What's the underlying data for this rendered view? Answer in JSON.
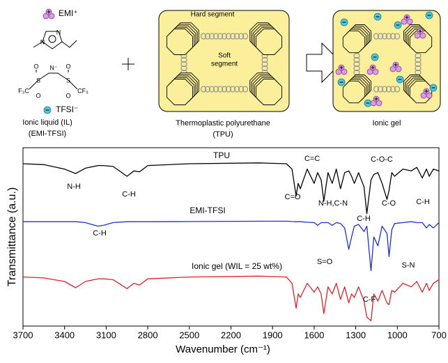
{
  "diagram": {
    "emi_label": "EMI⁺",
    "tfsi_label": "TFSI⁻",
    "il_label": [
      "Ionic liquid (IL)",
      "(EMI-TFSI)"
    ],
    "structure_labels": [
      "N",
      "N",
      "N⁻",
      "F₃C",
      "CF₃",
      "S",
      "O"
    ],
    "tpu_labels": [
      "Hard segment",
      "Soft",
      "segment"
    ],
    "tpu_caption": [
      "Thermoplastic polyurethane",
      "(TPU)"
    ],
    "gel_caption": "Ionic gel"
  },
  "chart_data": {
    "type": "line",
    "x_label": "Wavenumber (cm⁻¹)",
    "y_label": "Transmittance (a.u.)",
    "xlim": [
      3700,
      700
    ],
    "xticks": [
      3700,
      3400,
      3100,
      2800,
      2500,
      2200,
      1900,
      1600,
      1300,
      1000,
      700
    ],
    "ylim": [
      0,
      100
    ],
    "x": [
      3700,
      3550,
      3400,
      3320,
      3250,
      3160,
      3120,
      3050,
      2950,
      2900,
      2860,
      2800,
      2500,
      2000,
      1800,
      1760,
      1730,
      1715,
      1700,
      1650,
      1600,
      1575,
      1550,
      1530,
      1500,
      1470,
      1440,
      1410,
      1380,
      1350,
      1330,
      1310,
      1280,
      1240,
      1220,
      1190,
      1170,
      1140,
      1110,
      1075,
      1060,
      1040,
      1020,
      960,
      900,
      860,
      820,
      790,
      770,
      740,
      700
    ],
    "series": [
      {
        "name": "TPU",
        "color": "#000000",
        "values": [
          91,
          90.5,
          88,
          85.5,
          88.5,
          90,
          90,
          89.5,
          84,
          87,
          86.5,
          90,
          91,
          91.5,
          91,
          88,
          73,
          80,
          77,
          88,
          80,
          86,
          82,
          70,
          86,
          80,
          88,
          77,
          86,
          87,
          84,
          80,
          86,
          78,
          63,
          82,
          85,
          86,
          80,
          71,
          76,
          86,
          84,
          88,
          87,
          89,
          83,
          88,
          84,
          88,
          87
        ]
      },
      {
        "name": "EMI-TFSI",
        "color": "#1f2fd0",
        "values": [
          58.5,
          58.5,
          58.5,
          58.5,
          58,
          56,
          56.5,
          58,
          58.5,
          58.5,
          58.5,
          58.5,
          58.6,
          58.8,
          58.8,
          58.6,
          58.5,
          58.5,
          58.5,
          58.2,
          58,
          56.5,
          58,
          58,
          58,
          56.5,
          58,
          57.5,
          55,
          43,
          50,
          56,
          57,
          53,
          56,
          31,
          50,
          45,
          56,
          52,
          39,
          54,
          57.5,
          58,
          58.5,
          58,
          58,
          55,
          57,
          55,
          58
        ]
      },
      {
        "name": "Ionic gel (WIL = 25 wt%)",
        "color": "#e0202a",
        "values": [
          27.5,
          27,
          25,
          21.5,
          25,
          26.5,
          26.5,
          26,
          21,
          24,
          23,
          26.5,
          27.5,
          28,
          27.5,
          24,
          10,
          18,
          16,
          24,
          19,
          22,
          18,
          7,
          22,
          18,
          24,
          15,
          22,
          13,
          18,
          16,
          22,
          14,
          5,
          3,
          18,
          14,
          20,
          13,
          12,
          20,
          19,
          24,
          22,
          25,
          19,
          24,
          20,
          24,
          26
        ]
      }
    ],
    "annotations": [
      "N-H",
      "C-H",
      "C=O",
      "C=C",
      "N-H,C-N",
      "C-H",
      "C-O-C",
      "C-O",
      "C-H",
      "C-H",
      "S=O",
      "C-F",
      "S-N"
    ]
  }
}
